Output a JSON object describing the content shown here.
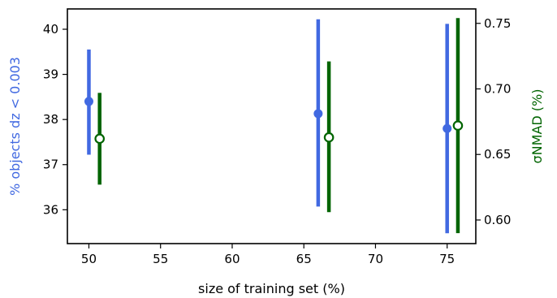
{
  "chart_data": {
    "type": "scatter",
    "xlabel": "size of training set (%)",
    "ylabel_left": "% objects dz < 0.003",
    "ylabel_right": "σNMAD (%)",
    "xlim": [
      48.5,
      77.0
    ],
    "ylim_left": [
      35.25,
      40.45
    ],
    "ylim_right": [
      0.582,
      0.761
    ],
    "x_ticks": [
      50,
      55,
      60,
      65,
      70,
      75
    ],
    "y_ticks_left": [
      36,
      37,
      38,
      39,
      40
    ],
    "y_ticks_right": [
      0.6,
      0.65,
      0.7,
      0.75
    ],
    "grid": false,
    "series": [
      {
        "axis": "left",
        "color": "#4169e1",
        "marker": "filled-circle",
        "points": [
          {
            "x": 50.0,
            "y": 38.4,
            "ylow": 37.22,
            "yhigh": 39.55
          },
          {
            "x": 66.0,
            "y": 38.13,
            "ylow": 36.07,
            "yhigh": 40.22
          },
          {
            "x": 75.0,
            "y": 37.8,
            "ylow": 35.48,
            "yhigh": 40.12
          }
        ]
      },
      {
        "axis": "right",
        "color": "#006400",
        "marker": "open-circle",
        "points": [
          {
            "x": 50.75,
            "y": 0.662,
            "ylow": 0.627,
            "yhigh": 0.697
          },
          {
            "x": 66.75,
            "y": 0.663,
            "ylow": 0.606,
            "yhigh": 0.721
          },
          {
            "x": 75.75,
            "y": 0.672,
            "ylow": 0.59,
            "yhigh": 0.754
          }
        ]
      }
    ]
  }
}
